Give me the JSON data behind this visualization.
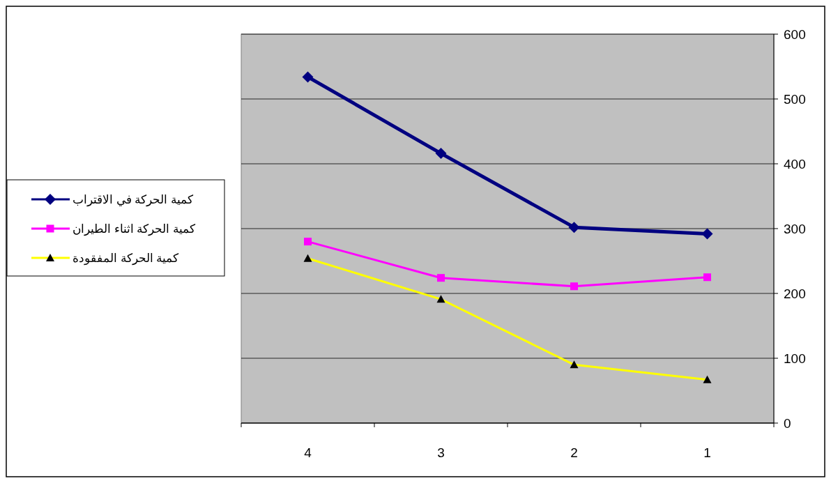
{
  "chart_data": {
    "type": "line",
    "categories": [
      "4",
      "3",
      "2",
      "1"
    ],
    "series": [
      {
        "name": "كمية الحركة في الاقتراب",
        "color": "#000080",
        "values": [
          534,
          416,
          302,
          292
        ],
        "marker": "diamond"
      },
      {
        "name": "كمية الحركة اثناء الطيران",
        "color": "#ff00ff",
        "values": [
          280,
          224,
          211,
          225
        ],
        "marker": "square"
      },
      {
        "name": "كمية الحركة المفقودة",
        "color": "#ffff00",
        "values": [
          254,
          191,
          90,
          67
        ],
        "marker": "triangle"
      }
    ],
    "ylim": [
      0,
      600
    ],
    "yticks": [
      0,
      100,
      200,
      300,
      400,
      500,
      600
    ],
    "grid": "y",
    "legend": "left"
  }
}
